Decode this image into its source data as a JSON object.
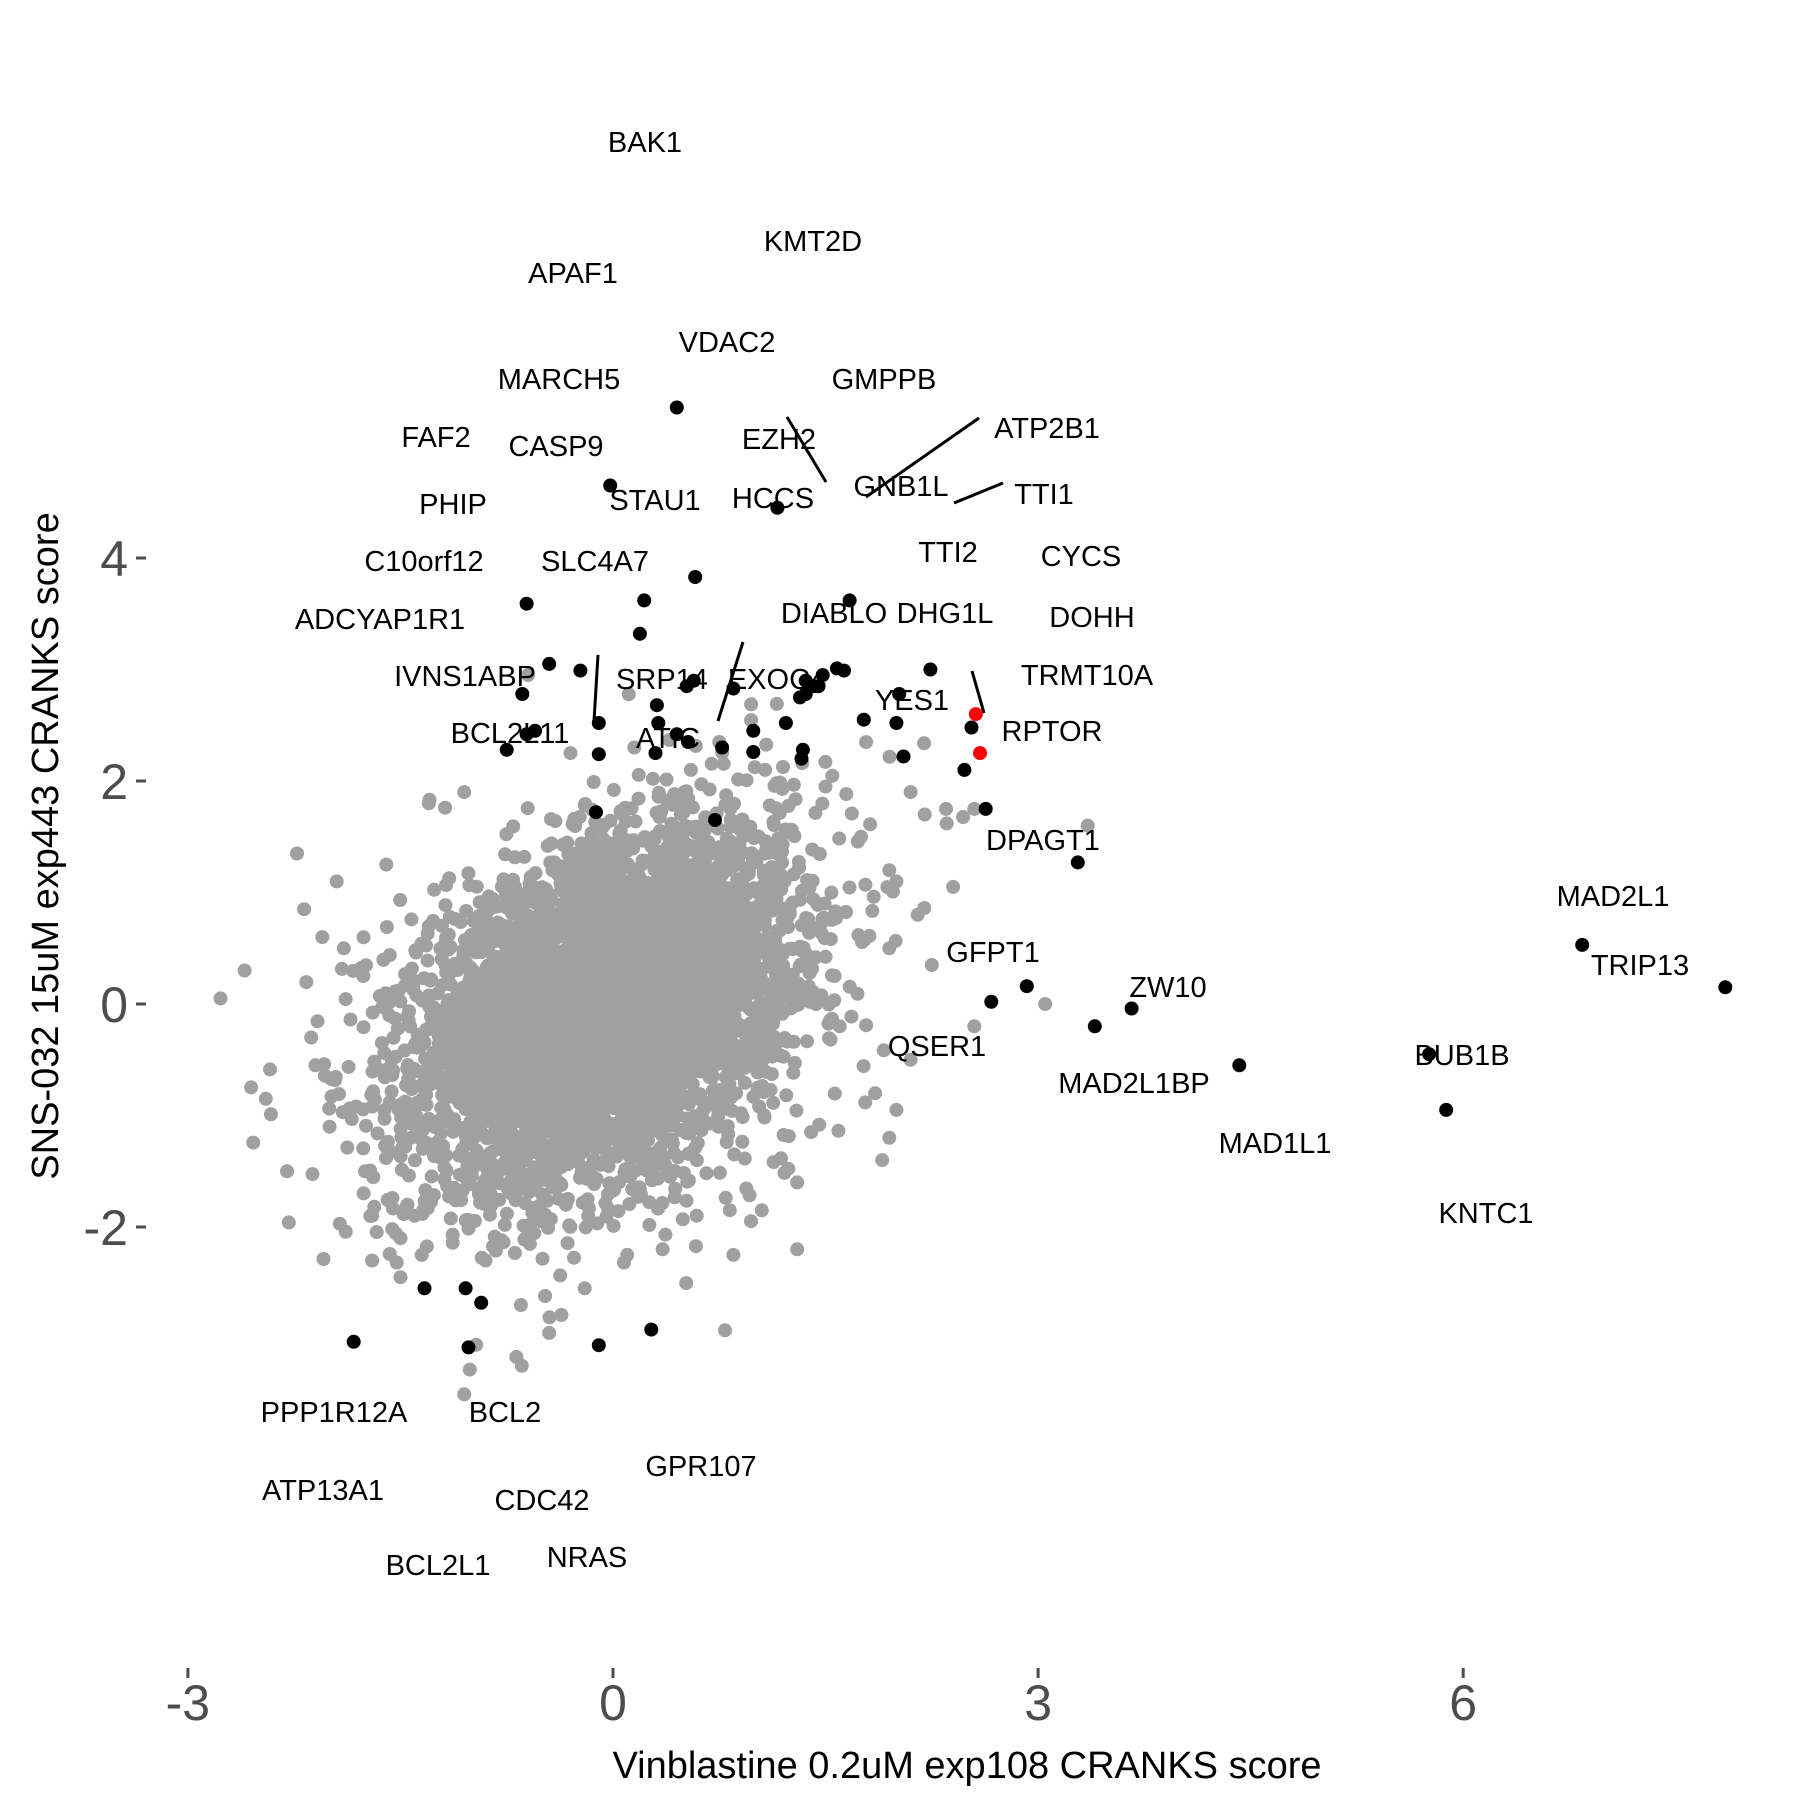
{
  "chart_data": {
    "type": "scatter",
    "title": "",
    "xlabel": "Vinblastine 0.2uM exp108 CRANKS score",
    "ylabel": "SNS-032 15uM exp443 CRANKS score",
    "xlim": [
      -3.1,
      8.1
    ],
    "ylim": [
      -3.85,
      5.5
    ],
    "xticks": [
      -3,
      0,
      3,
      6
    ],
    "xtick_labels": [
      "-3",
      "0",
      "3",
      "6"
    ],
    "yticks": [
      -2,
      0,
      2,
      4
    ],
    "ytick_labels": [
      "-2",
      "0",
      "2",
      "4"
    ],
    "grid": false,
    "legend": "none",
    "colors": {
      "background_points": "#a0a0a0",
      "labeled_points": "#000000",
      "highlighted_points": "#ff0000",
      "axis_text": "#4d4d4d"
    },
    "background_cloud": {
      "description_points": [
        [
          -2.77,
          0.05
        ],
        [
          -2.6,
          0.3
        ],
        [
          -2.23,
          1.35
        ],
        [
          -2.18,
          0.85
        ],
        [
          -2.13,
          -0.3
        ],
        [
          -2.3,
          -1.5
        ],
        [
          -2.45,
          -0.85
        ],
        [
          -2.1,
          -0.55
        ],
        [
          -1.95,
          1.1
        ],
        [
          -1.9,
          0.5
        ],
        [
          -2.0,
          -1.1
        ],
        [
          -1.75,
          -1.5
        ],
        [
          -1.7,
          -1.9
        ],
        [
          -1.5,
          -2.1
        ],
        [
          -1.35,
          -2.25
        ],
        [
          -1.5,
          -2.45
        ],
        [
          -1.7,
          -2.3
        ],
        [
          -1.4,
          -1.9
        ],
        [
          -1.45,
          -1.8
        ],
        [
          -1.6,
          1.25
        ],
        [
          -1.3,
          1.8
        ],
        [
          -1.05,
          1.9
        ],
        [
          -1.05,
          -3.5
        ],
        [
          -0.9,
          -2.3
        ],
        [
          -0.65,
          -2.7
        ],
        [
          -0.5,
          -1.95
        ],
        [
          -0.45,
          -2.95
        ],
        [
          -0.2,
          -2.55
        ],
        [
          0.1,
          -2.25
        ],
        [
          0.35,
          -2.2
        ],
        [
          0.85,
          -2.25
        ],
        [
          1.3,
          -2.2
        ],
        [
          -0.6,
          2.95
        ],
        [
          -0.3,
          2.25
        ],
        [
          0.15,
          2.3
        ],
        [
          0.55,
          2.1
        ],
        [
          1.5,
          1.95
        ],
        [
          2.1,
          1.9
        ],
        [
          2.2,
          1.7
        ],
        [
          2.35,
          1.75
        ],
        [
          2.55,
          1.75
        ],
        [
          3.35,
          1.6
        ],
        [
          1.95,
          1.2
        ],
        [
          2.0,
          1.1
        ],
        [
          2.4,
          1.05
        ],
        [
          2.15,
          0.8
        ],
        [
          1.95,
          0.5
        ],
        [
          2.25,
          0.35
        ],
        [
          2.55,
          -0.2
        ],
        [
          3.05,
          0.0
        ],
        [
          2.1,
          -0.5
        ],
        [
          1.85,
          -0.8
        ],
        [
          1.95,
          -1.2
        ],
        [
          1.9,
          -1.4
        ],
        [
          1.3,
          -1.6
        ],
        [
          1.05,
          -1.85
        ],
        [
          1.6,
          -0.2
        ],
        [
          2.0,
          -0.95
        ],
        [
          0.75,
          2.35
        ],
        [
          1.75,
          1.5
        ]
      ]
    },
    "labeled_genes": [
      {
        "label": "BAK1",
        "x": 0.45,
        "y": 5.35,
        "color": "black"
      },
      {
        "label": "APAF1",
        "x": -0.02,
        "y": 4.65,
        "color": "black"
      },
      {
        "label": "KMT2D",
        "x": 1.16,
        "y": 4.45,
        "color": "black"
      },
      {
        "label": "VDAC2",
        "x": 0.58,
        "y": 3.83,
        "color": "black"
      },
      {
        "label": "MARCH5",
        "x": 0.22,
        "y": 3.62,
        "color": "black"
      },
      {
        "label": "GMPPB",
        "x": 1.67,
        "y": 3.62,
        "color": "black"
      },
      {
        "label": "FAF2",
        "x": -0.61,
        "y": 3.59,
        "color": "black"
      },
      {
        "label": "CASP9",
        "x": 0.19,
        "y": 3.32,
        "color": "black"
      },
      {
        "label": "EZH2",
        "x": 1.45,
        "y": 2.85,
        "color": "black"
      },
      {
        "label": "ATP2B1",
        "x": 1.63,
        "y": 2.99,
        "color": "black"
      },
      {
        "label": "GNB1L",
        "x": 1.58,
        "y": 3.01,
        "color": "black"
      },
      {
        "label": "TTI1",
        "x": 2.24,
        "y": 3.0,
        "color": "black"
      },
      {
        "label": "HCCS",
        "x": 0.85,
        "y": 2.83,
        "color": "black"
      },
      {
        "label": "PHIP",
        "x": -0.45,
        "y": 3.05,
        "color": "black"
      },
      {
        "label": "STAU1",
        "x": -0.23,
        "y": 2.99,
        "color": "black"
      },
      {
        "label": "C10orf12",
        "x": -0.64,
        "y": 2.78,
        "color": "black"
      },
      {
        "label": "SLC4A7",
        "x": 0.31,
        "y": 2.68,
        "color": "black"
      },
      {
        "label": "TTI2",
        "x": 2.02,
        "y": 2.78,
        "color": "black"
      },
      {
        "label": "CYCS",
        "x": 2.56,
        "y": 2.6,
        "color": "red"
      },
      {
        "label": "DHG1L",
        "x": 2.53,
        "y": 2.48,
        "color": "black"
      },
      {
        "label": "DOHH",
        "x": 2.59,
        "y": 2.25,
        "color": "red"
      },
      {
        "label": "DIABLO",
        "x": 0.99,
        "y": 2.45,
        "color": "black"
      },
      {
        "label": "ADCYAP1R1",
        "x": -0.75,
        "y": 2.28,
        "color": "black"
      },
      {
        "label": "IVNS1ABP",
        "x": -0.12,
        "y": 1.72,
        "color": "black"
      },
      {
        "label": "SRP14",
        "x": 0.3,
        "y": 2.25,
        "color": "black"
      },
      {
        "label": "EXOC4",
        "x": 0.99,
        "y": 2.26,
        "color": "black"
      },
      {
        "label": "TRMT10A",
        "x": 2.48,
        "y": 2.1,
        "color": "black"
      },
      {
        "label": "YES1",
        "x": 2.05,
        "y": 2.22,
        "color": "black"
      },
      {
        "label": "RPTOR",
        "x": 2.63,
        "y": 1.75,
        "color": "black"
      },
      {
        "label": "BCL2L11",
        "x": -0.1,
        "y": 2.24,
        "color": "black"
      },
      {
        "label": "ATIC",
        "x": 0.72,
        "y": 1.65,
        "color": "black"
      },
      {
        "label": "DPAGT1",
        "x": 3.28,
        "y": 1.27,
        "color": "black"
      },
      {
        "label": "MAD2L1",
        "x": 6.84,
        "y": 0.53,
        "color": "black"
      },
      {
        "label": "TRIP13",
        "x": 7.85,
        "y": 0.15,
        "color": "black"
      },
      {
        "label": "GFPT1",
        "x": 2.92,
        "y": 0.16,
        "color": "black"
      },
      {
        "label": "ZW10",
        "x": 3.66,
        "y": -0.04,
        "color": "black"
      },
      {
        "label": "QSER1",
        "x": 2.67,
        "y": 0.02,
        "color": "black"
      },
      {
        "label": "MAD2L1BP",
        "x": 3.4,
        "y": -0.2,
        "color": "black"
      },
      {
        "label": "MAD1L1",
        "x": 4.42,
        "y": -0.55,
        "color": "black"
      },
      {
        "label": "BUB1B",
        "x": 5.76,
        "y": -0.45,
        "color": "black"
      },
      {
        "label": "KNTC1",
        "x": 5.88,
        "y": -0.95,
        "color": "black"
      },
      {
        "label": "PPP1R12A",
        "x": -1.33,
        "y": -2.55,
        "color": "black"
      },
      {
        "label": "BCL2",
        "x": -1.04,
        "y": -2.55,
        "color": "black"
      },
      {
        "label": "ATP13A1",
        "x": -1.83,
        "y": -3.03,
        "color": "black"
      },
      {
        "label": "CDC42",
        "x": -0.93,
        "y": -2.68,
        "color": "black"
      },
      {
        "label": "GPR107",
        "x": 0.27,
        "y": -2.92,
        "color": "black"
      },
      {
        "label": "BCL2L1",
        "x": -1.02,
        "y": -3.08,
        "color": "black"
      },
      {
        "label": "NRAS",
        "x": -0.1,
        "y": -3.06,
        "color": "black"
      }
    ],
    "extra_black_points": [
      [
        1.36,
        2.9
      ],
      [
        1.42,
        2.85
      ],
      [
        1.48,
        2.95
      ],
      [
        1.36,
        2.78
      ],
      [
        1.32,
        2.75
      ],
      [
        1.22,
        2.52
      ],
      [
        1.33,
        2.2
      ],
      [
        1.34,
        2.28
      ],
      [
        1.77,
        2.55
      ],
      [
        2.0,
        2.52
      ],
      [
        0.57,
        2.9
      ],
      [
        0.52,
        2.85
      ],
      [
        0.32,
        2.52
      ],
      [
        0.45,
        2.42
      ],
      [
        0.53,
        2.35
      ],
      [
        -0.1,
        2.52
      ],
      [
        -0.55,
        2.45
      ],
      [
        -0.61,
        2.42
      ],
      [
        0.77,
        2.3
      ]
    ]
  }
}
